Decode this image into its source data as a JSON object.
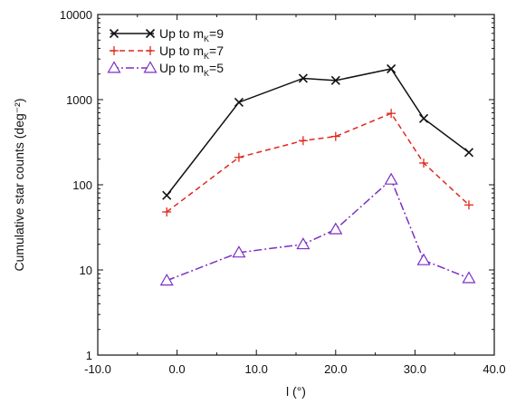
{
  "chart_data": {
    "type": "line",
    "xlabel": "l (°)",
    "ylabel": "Cumulative star counts (deg⁻²)",
    "x_ticks": [
      "-10.0",
      "0.0",
      "10.0",
      "20.0",
      "30.0",
      "40.0"
    ],
    "y_ticks": [
      "1",
      "10",
      "100",
      "1000",
      "10000"
    ],
    "xlim": [
      -10,
      40
    ],
    "ylim": [
      1,
      10000
    ],
    "yscale": "log",
    "grid": false,
    "legend_position": "top-left",
    "series": [
      {
        "name": "Up to mK=9",
        "legend_main": "Up to m",
        "legend_sub": "K",
        "legend_tail": "=9",
        "color": "#111111",
        "marker": "x",
        "dash": "",
        "x": [
          -1.3,
          7.8,
          15.9,
          20.0,
          27.0,
          31.1,
          36.8
        ],
        "y": [
          75,
          930,
          1780,
          1680,
          2300,
          600,
          240
        ]
      },
      {
        "name": "Up to mK=7",
        "legend_main": "Up to m",
        "legend_sub": "K",
        "legend_tail": "=7",
        "color": "#e0281c",
        "marker": "+",
        "dash": "6,4",
        "x": [
          -1.3,
          7.8,
          15.9,
          20.0,
          27.0,
          31.1,
          36.8
        ],
        "y": [
          48,
          210,
          330,
          370,
          690,
          180,
          58
        ]
      },
      {
        "name": "Up to mK=5",
        "legend_main": "Up to m",
        "legend_sub": "K",
        "legend_tail": "=5",
        "color": "#7b2fc4",
        "marker": "triangle",
        "dash": "9,3,2,3",
        "x": [
          -1.3,
          7.8,
          15.9,
          20.0,
          27.0,
          31.1,
          36.8
        ],
        "y": [
          7.5,
          16,
          20,
          30,
          115,
          13,
          8
        ]
      }
    ]
  }
}
